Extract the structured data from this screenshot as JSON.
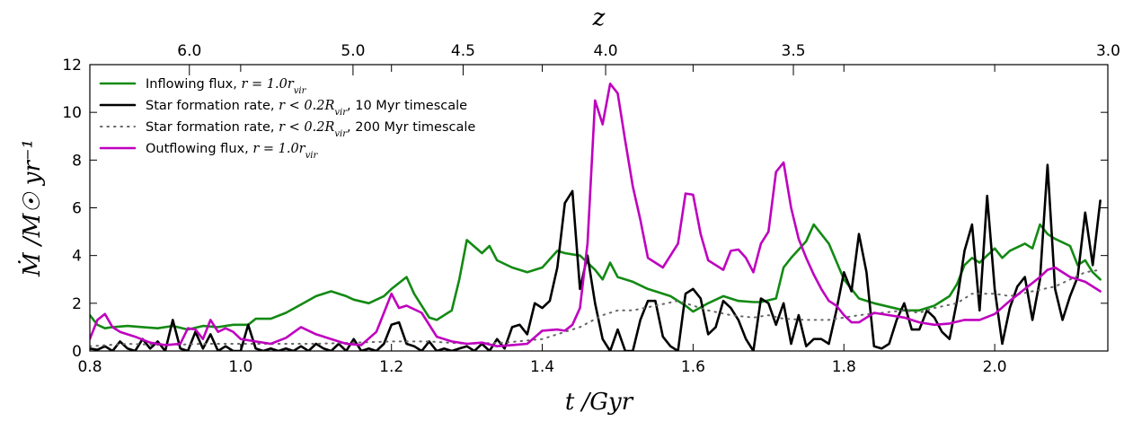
{
  "chart_data": {
    "type": "line",
    "xlabel": "t /Gyr",
    "ylabel": "Ṁ /M☉ yr⁻¹",
    "top_xlabel": "z",
    "xlim": [
      0.8,
      2.15
    ],
    "ylim": [
      0,
      12
    ],
    "grid": false,
    "legend_position": "top-left",
    "x_ticks": [
      0.8,
      1.0,
      1.2,
      1.4,
      1.6,
      1.8,
      2.0
    ],
    "x_tick_labels": [
      "0.8",
      "1.0",
      "1.2",
      "1.4",
      "1.6",
      "1.8",
      "2.0"
    ],
    "y_ticks": [
      0,
      2,
      4,
      6,
      8,
      10,
      12
    ],
    "y_tick_labels": [
      "0",
      "2",
      "4",
      "6",
      "8",
      "10",
      "12"
    ],
    "top_ticks": [
      {
        "t": 0.932,
        "label": "6.0"
      },
      {
        "t": 1.149,
        "label": "5.0"
      },
      {
        "t": 1.295,
        "label": "4.5"
      },
      {
        "t": 1.484,
        "label": "4.0"
      },
      {
        "t": 1.733,
        "label": "3.5"
      },
      {
        "t": 2.15,
        "label": "3.0"
      }
    ],
    "series": [
      {
        "name": "Inflowing flux, r = 1.0 r_vir",
        "legend_label": "Inflowing flux, ",
        "legend_math": "r = 1.0r",
        "legend_sub": "vir",
        "color": "#138a13",
        "style": "solid",
        "x": [
          0.8,
          0.81,
          0.82,
          0.83,
          0.85,
          0.87,
          0.89,
          0.91,
          0.93,
          0.95,
          0.97,
          0.99,
          1.01,
          1.02,
          1.04,
          1.06,
          1.08,
          1.1,
          1.12,
          1.14,
          1.15,
          1.17,
          1.19,
          1.2,
          1.22,
          1.23,
          1.25,
          1.26,
          1.28,
          1.29,
          1.3,
          1.32,
          1.33,
          1.34,
          1.36,
          1.38,
          1.4,
          1.42,
          1.43,
          1.45,
          1.47,
          1.48,
          1.49,
          1.5,
          1.52,
          1.54,
          1.55,
          1.57,
          1.59,
          1.6,
          1.62,
          1.64,
          1.66,
          1.68,
          1.69,
          1.71,
          1.72,
          1.73,
          1.75,
          1.76,
          1.78,
          1.8,
          1.82,
          1.84,
          1.86,
          1.88,
          1.9,
          1.92,
          1.94,
          1.95,
          1.96,
          1.97,
          1.98,
          2.0,
          2.01,
          2.02,
          2.04,
          2.05,
          2.06,
          2.07,
          2.08,
          2.1,
          2.11,
          2.12,
          2.13,
          2.14
        ],
        "y": [
          1.5,
          1.1,
          0.95,
          1.0,
          1.05,
          1.0,
          0.95,
          1.05,
          0.9,
          1.05,
          1.0,
          1.1,
          1.1,
          1.35,
          1.35,
          1.6,
          1.95,
          2.3,
          2.5,
          2.3,
          2.15,
          2.0,
          2.3,
          2.6,
          3.1,
          2.4,
          1.4,
          1.3,
          1.7,
          3.0,
          4.65,
          4.1,
          4.4,
          3.8,
          3.5,
          3.3,
          3.5,
          4.2,
          4.1,
          4.0,
          3.4,
          3.0,
          3.7,
          3.1,
          2.9,
          2.6,
          2.5,
          2.3,
          1.9,
          1.65,
          2.0,
          2.3,
          2.1,
          2.05,
          2.05,
          2.2,
          3.5,
          3.9,
          4.6,
          5.3,
          4.5,
          3.0,
          2.2,
          2.0,
          1.85,
          1.7,
          1.7,
          1.9,
          2.3,
          2.8,
          3.6,
          3.9,
          3.7,
          4.3,
          3.9,
          4.2,
          4.5,
          4.3,
          5.3,
          4.9,
          4.7,
          4.4,
          3.6,
          3.8,
          3.3,
          3.0
        ]
      },
      {
        "name": "Star formation rate, r < 0.2 R_vir, 10 Myr timescale",
        "legend_label": "Star formation rate, ",
        "legend_math": "r < 0.2R",
        "legend_sub": "vir",
        "legend_suffix": ", 10 Myr timescale",
        "color": "#000000",
        "style": "solid",
        "x": [
          0.8,
          0.81,
          0.82,
          0.83,
          0.84,
          0.85,
          0.86,
          0.87,
          0.88,
          0.89,
          0.9,
          0.91,
          0.92,
          0.93,
          0.94,
          0.95,
          0.96,
          0.97,
          0.98,
          0.99,
          1.0,
          1.01,
          1.02,
          1.03,
          1.04,
          1.05,
          1.06,
          1.07,
          1.08,
          1.09,
          1.1,
          1.11,
          1.12,
          1.13,
          1.14,
          1.15,
          1.16,
          1.17,
          1.18,
          1.19,
          1.2,
          1.21,
          1.22,
          1.23,
          1.24,
          1.25,
          1.26,
          1.27,
          1.28,
          1.29,
          1.3,
          1.31,
          1.32,
          1.33,
          1.34,
          1.35,
          1.36,
          1.37,
          1.38,
          1.39,
          1.4,
          1.41,
          1.42,
          1.43,
          1.44,
          1.45,
          1.46,
          1.47,
          1.48,
          1.49,
          1.5,
          1.51,
          1.52,
          1.53,
          1.54,
          1.55,
          1.56,
          1.57,
          1.58,
          1.59,
          1.6,
          1.61,
          1.62,
          1.63,
          1.64,
          1.65,
          1.66,
          1.67,
          1.68,
          1.69,
          1.7,
          1.71,
          1.72,
          1.73,
          1.74,
          1.75,
          1.76,
          1.77,
          1.78,
          1.79,
          1.8,
          1.81,
          1.82,
          1.83,
          1.84,
          1.85,
          1.86,
          1.87,
          1.88,
          1.89,
          1.9,
          1.91,
          1.92,
          1.93,
          1.94,
          1.95,
          1.96,
          1.97,
          1.98,
          1.99,
          2.0,
          2.01,
          2.02,
          2.03,
          2.04,
          2.05,
          2.06,
          2.07,
          2.08,
          2.09,
          2.1,
          2.11,
          2.12,
          2.13,
          2.14
        ],
        "y": [
          0.1,
          0.05,
          0.2,
          0.0,
          0.4,
          0.1,
          0.0,
          0.5,
          0.1,
          0.4,
          0.0,
          1.3,
          0.1,
          0.0,
          0.8,
          0.1,
          0.7,
          0.0,
          0.2,
          0.0,
          0.0,
          1.1,
          0.1,
          0.0,
          0.1,
          0.0,
          0.1,
          0.0,
          0.2,
          0.0,
          0.3,
          0.1,
          0.0,
          0.3,
          0.0,
          0.5,
          0.0,
          0.1,
          0.0,
          0.3,
          1.1,
          1.2,
          0.3,
          0.2,
          0.0,
          0.4,
          0.0,
          0.1,
          0.0,
          0.1,
          0.2,
          0.0,
          0.3,
          0.0,
          0.5,
          0.1,
          1.0,
          1.1,
          0.7,
          2.0,
          1.8,
          2.1,
          3.5,
          6.2,
          6.7,
          2.6,
          4.0,
          2.0,
          0.5,
          0.0,
          0.9,
          0.0,
          0.0,
          1.3,
          2.1,
          2.1,
          0.6,
          0.2,
          0.0,
          2.4,
          2.6,
          2.2,
          0.7,
          1.0,
          2.1,
          1.8,
          1.3,
          0.5,
          0.0,
          2.2,
          2.0,
          1.1,
          2.0,
          0.3,
          1.5,
          0.2,
          0.5,
          0.5,
          0.3,
          1.7,
          3.3,
          2.5,
          4.9,
          3.3,
          0.2,
          0.1,
          0.3,
          1.3,
          2.0,
          0.9,
          0.9,
          1.7,
          1.4,
          0.8,
          0.5,
          2.1,
          4.2,
          5.3,
          1.7,
          6.5,
          2.6,
          0.3,
          1.8,
          2.7,
          3.1,
          1.3,
          3.0,
          7.8,
          2.6,
          1.3,
          2.3,
          3.1,
          5.8,
          3.6,
          6.3
        ]
      },
      {
        "name": "Star formation rate, r < 0.2 R_vir, 200 Myr timescale",
        "legend_label": "Star formation rate, ",
        "legend_math": "r < 0.2R",
        "legend_sub": "vir",
        "legend_suffix": ", 200 Myr timescale",
        "color": "#666666",
        "style": "dotted",
        "x": [
          0.8,
          0.85,
          0.9,
          0.95,
          1.0,
          1.05,
          1.1,
          1.15,
          1.2,
          1.25,
          1.3,
          1.35,
          1.4,
          1.45,
          1.48,
          1.5,
          1.52,
          1.55,
          1.58,
          1.6,
          1.62,
          1.65,
          1.68,
          1.7,
          1.72,
          1.75,
          1.78,
          1.8,
          1.82,
          1.85,
          1.88,
          1.9,
          1.92,
          1.95,
          1.97,
          2.0,
          2.02,
          2.05,
          2.08,
          2.1,
          2.12,
          2.14
        ],
        "y": [
          0.2,
          0.3,
          0.25,
          0.3,
          0.3,
          0.3,
          0.3,
          0.35,
          0.4,
          0.4,
          0.3,
          0.35,
          0.5,
          1.0,
          1.5,
          1.7,
          1.7,
          1.9,
          2.1,
          1.9,
          1.7,
          1.5,
          1.4,
          1.5,
          1.35,
          1.3,
          1.3,
          1.4,
          1.5,
          1.6,
          1.7,
          1.6,
          1.8,
          2.0,
          2.4,
          2.4,
          2.3,
          2.5,
          2.7,
          3.0,
          3.3,
          3.4
        ]
      },
      {
        "name": "Outflowing flux, r = 1.0 r_vir",
        "legend_label": "Outflowing flux, ",
        "legend_math": "r = 1.0r",
        "legend_sub": "vir",
        "color": "#bf00bf",
        "style": "solid",
        "x": [
          0.8,
          0.81,
          0.82,
          0.83,
          0.84,
          0.86,
          0.88,
          0.9,
          0.92,
          0.93,
          0.94,
          0.95,
          0.96,
          0.97,
          0.98,
          0.99,
          1.0,
          1.02,
          1.04,
          1.06,
          1.08,
          1.1,
          1.12,
          1.14,
          1.16,
          1.18,
          1.19,
          1.2,
          1.21,
          1.22,
          1.24,
          1.26,
          1.28,
          1.3,
          1.32,
          1.34,
          1.36,
          1.38,
          1.4,
          1.42,
          1.43,
          1.44,
          1.45,
          1.46,
          1.47,
          1.48,
          1.49,
          1.5,
          1.51,
          1.52,
          1.53,
          1.54,
          1.55,
          1.56,
          1.57,
          1.58,
          1.59,
          1.6,
          1.61,
          1.62,
          1.63,
          1.64,
          1.65,
          1.66,
          1.67,
          1.68,
          1.69,
          1.7,
          1.71,
          1.72,
          1.73,
          1.74,
          1.75,
          1.76,
          1.77,
          1.78,
          1.79,
          1.8,
          1.81,
          1.82,
          1.83,
          1.84,
          1.86,
          1.88,
          1.9,
          1.92,
          1.94,
          1.96,
          1.98,
          2.0,
          2.02,
          2.04,
          2.06,
          2.07,
          2.08,
          2.1,
          2.12,
          2.14
        ],
        "y": [
          0.5,
          1.3,
          1.55,
          1.0,
          0.8,
          0.6,
          0.35,
          0.25,
          0.3,
          0.95,
          0.9,
          0.5,
          1.3,
          0.8,
          0.95,
          0.8,
          0.5,
          0.4,
          0.3,
          0.55,
          1.0,
          0.7,
          0.5,
          0.3,
          0.25,
          0.8,
          1.6,
          2.4,
          1.8,
          1.9,
          1.6,
          0.6,
          0.4,
          0.3,
          0.35,
          0.2,
          0.25,
          0.3,
          0.85,
          0.9,
          0.85,
          1.1,
          1.8,
          4.5,
          10.5,
          9.5,
          11.2,
          10.8,
          8.8,
          6.9,
          5.5,
          3.9,
          3.7,
          3.5,
          4.0,
          4.5,
          6.6,
          6.55,
          4.9,
          3.8,
          3.6,
          3.4,
          4.2,
          4.25,
          3.9,
          3.3,
          4.5,
          5.0,
          7.5,
          7.9,
          6.0,
          4.7,
          3.9,
          3.2,
          2.6,
          2.1,
          1.9,
          1.5,
          1.2,
          1.2,
          1.4,
          1.6,
          1.5,
          1.4,
          1.2,
          1.1,
          1.15,
          1.3,
          1.3,
          1.55,
          2.1,
          2.6,
          3.1,
          3.4,
          3.5,
          3.1,
          2.9,
          2.5
        ]
      }
    ]
  }
}
